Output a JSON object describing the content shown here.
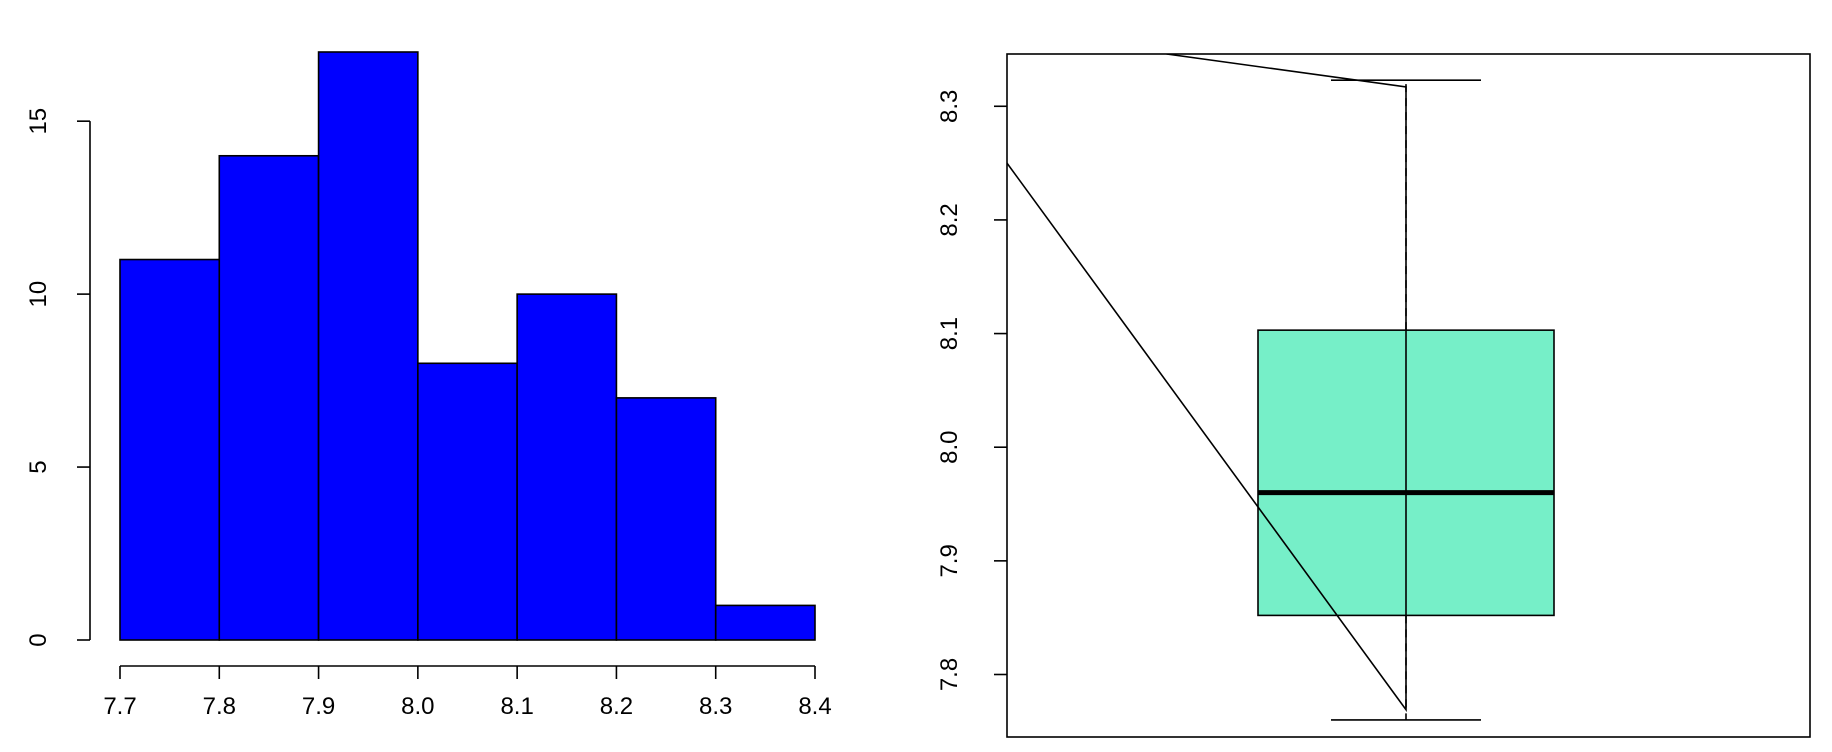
{
  "chart_data": [
    {
      "type": "bar",
      "subtype": "histogram",
      "bin_edges": [
        7.7,
        7.8,
        7.9,
        8.0,
        8.1,
        8.2,
        8.3,
        8.4
      ],
      "values": [
        11,
        14,
        17,
        8,
        10,
        7,
        1
      ],
      "x_ticks": [
        "7.7",
        "7.8",
        "7.9",
        "8.0",
        "8.1",
        "8.2",
        "8.3",
        "8.4"
      ],
      "y_ticks": [
        "0",
        "5",
        "10",
        "15"
      ],
      "xlim": [
        7.7,
        8.4
      ],
      "ylim": [
        0,
        17
      ],
      "title": "",
      "xlabel": "",
      "ylabel": "",
      "bar_color": "#0000ff",
      "edge_color": "#000000"
    },
    {
      "type": "box",
      "min": 7.76,
      "q1": 7.852,
      "median": 7.96,
      "q3": 8.103,
      "max": 8.323,
      "y_ticks": [
        "7.8",
        "7.9",
        "8.0",
        "8.1",
        "8.2",
        "8.3"
      ],
      "ylim": [
        7.745,
        8.346
      ],
      "box_color": "#76efc8",
      "overlay_line": {
        "y": [
          8.25,
          7.769,
          8.317,
          8.346
        ],
        "x": [
          0.0,
          0.5,
          0.5,
          0.2
        ]
      },
      "title": "",
      "xlabel": "",
      "ylabel": ""
    }
  ]
}
